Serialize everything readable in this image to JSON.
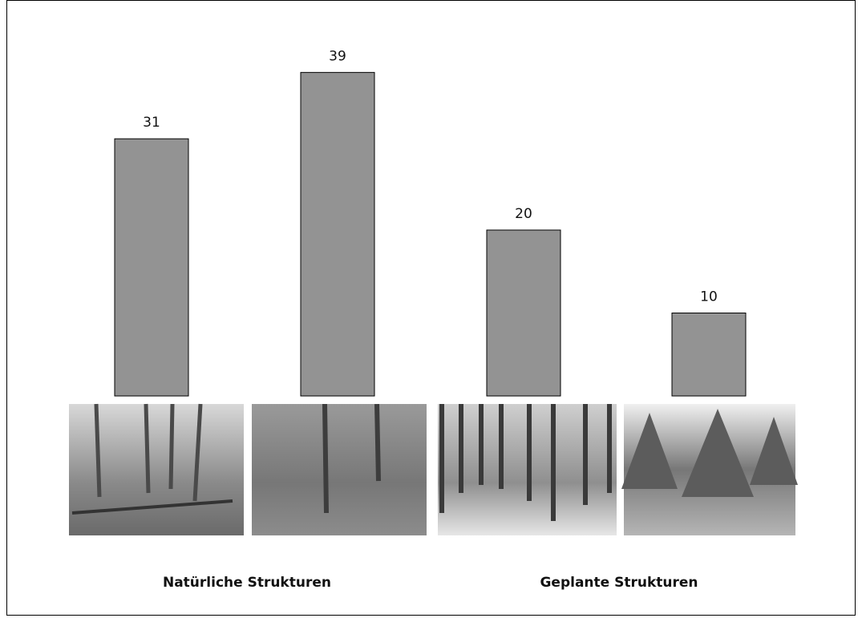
{
  "chart_data": {
    "type": "bar",
    "categories": [
      null,
      null,
      null,
      null
    ],
    "values": [
      31,
      39,
      20,
      10
    ],
    "color": "#939393",
    "groups": [
      "Natürliche Strukturen",
      "Geplante Strukturen"
    ]
  }
}
